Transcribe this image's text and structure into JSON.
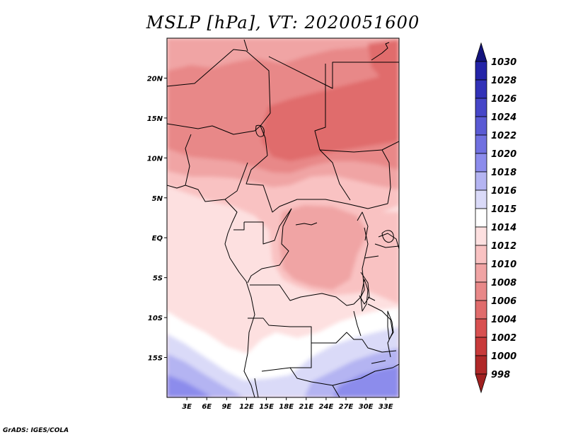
{
  "title": "MSLP [hPa], VT: 2020051600",
  "credit": "GrADS: IGES/COLA",
  "map": {
    "lat_range": [
      -20,
      25
    ],
    "lon_range": [
      0,
      35
    ],
    "lat_ticks": [
      {
        "value": 20,
        "label": "20N"
      },
      {
        "value": 15,
        "label": "15N"
      },
      {
        "value": 10,
        "label": "10N"
      },
      {
        "value": 5,
        "label": "5N"
      },
      {
        "value": 0,
        "label": "EQ"
      },
      {
        "value": -5,
        "label": "5S"
      },
      {
        "value": -10,
        "label": "10S"
      },
      {
        "value": -15,
        "label": "15S"
      }
    ],
    "lon_ticks": [
      {
        "value": 3,
        "label": "3E"
      },
      {
        "value": 6,
        "label": "6E"
      },
      {
        "value": 9,
        "label": "9E"
      },
      {
        "value": 12,
        "label": "12E"
      },
      {
        "value": 15,
        "label": "15E"
      },
      {
        "value": 18,
        "label": "18E"
      },
      {
        "value": 21,
        "label": "21E"
      },
      {
        "value": 24,
        "label": "24E"
      },
      {
        "value": 27,
        "label": "27E"
      },
      {
        "value": 30,
        "label": "30E"
      },
      {
        "value": 33,
        "label": "33E"
      }
    ]
  },
  "colorbar": {
    "levels": [
      {
        "label": "1030",
        "color": "#1a1a96"
      },
      {
        "label": "1028",
        "color": "#2424a8"
      },
      {
        "label": "1026",
        "color": "#3232b8"
      },
      {
        "label": "1024",
        "color": "#4646c8"
      },
      {
        "label": "1022",
        "color": "#5a5ad4"
      },
      {
        "label": "1020",
        "color": "#7070e0"
      },
      {
        "label": "1018",
        "color": "#8c8cec"
      },
      {
        "label": "1016",
        "color": "#b4b4f2"
      },
      {
        "label": "1015",
        "color": "#dadaf8"
      },
      {
        "label": "1014",
        "color": "#ffffff"
      },
      {
        "label": "1012",
        "color": "#fde0e0"
      },
      {
        "label": "1010",
        "color": "#f9c2c2"
      },
      {
        "label": "1008",
        "color": "#f0a4a4"
      },
      {
        "label": "1006",
        "color": "#e88888"
      },
      {
        "label": "1004",
        "color": "#e06c6c"
      },
      {
        "label": "1002",
        "color": "#d85050"
      },
      {
        "label": "1000",
        "color": "#c83a3a"
      },
      {
        "label": "998",
        "color": "#b02828"
      }
    ],
    "top_arrow_color": "#14147d",
    "bottom_arrow_color": "#a02020"
  },
  "field_colors": {
    "p1004": "#e06c6c",
    "p1006": "#e88888",
    "p1008": "#f0a4a4",
    "p1010": "#f9c2c2",
    "p1012": "#fde0e0",
    "p1014": "#ffffff",
    "p1015": "#dadaf8",
    "p1016": "#b4b4f2",
    "p1018": "#8c8cec"
  }
}
